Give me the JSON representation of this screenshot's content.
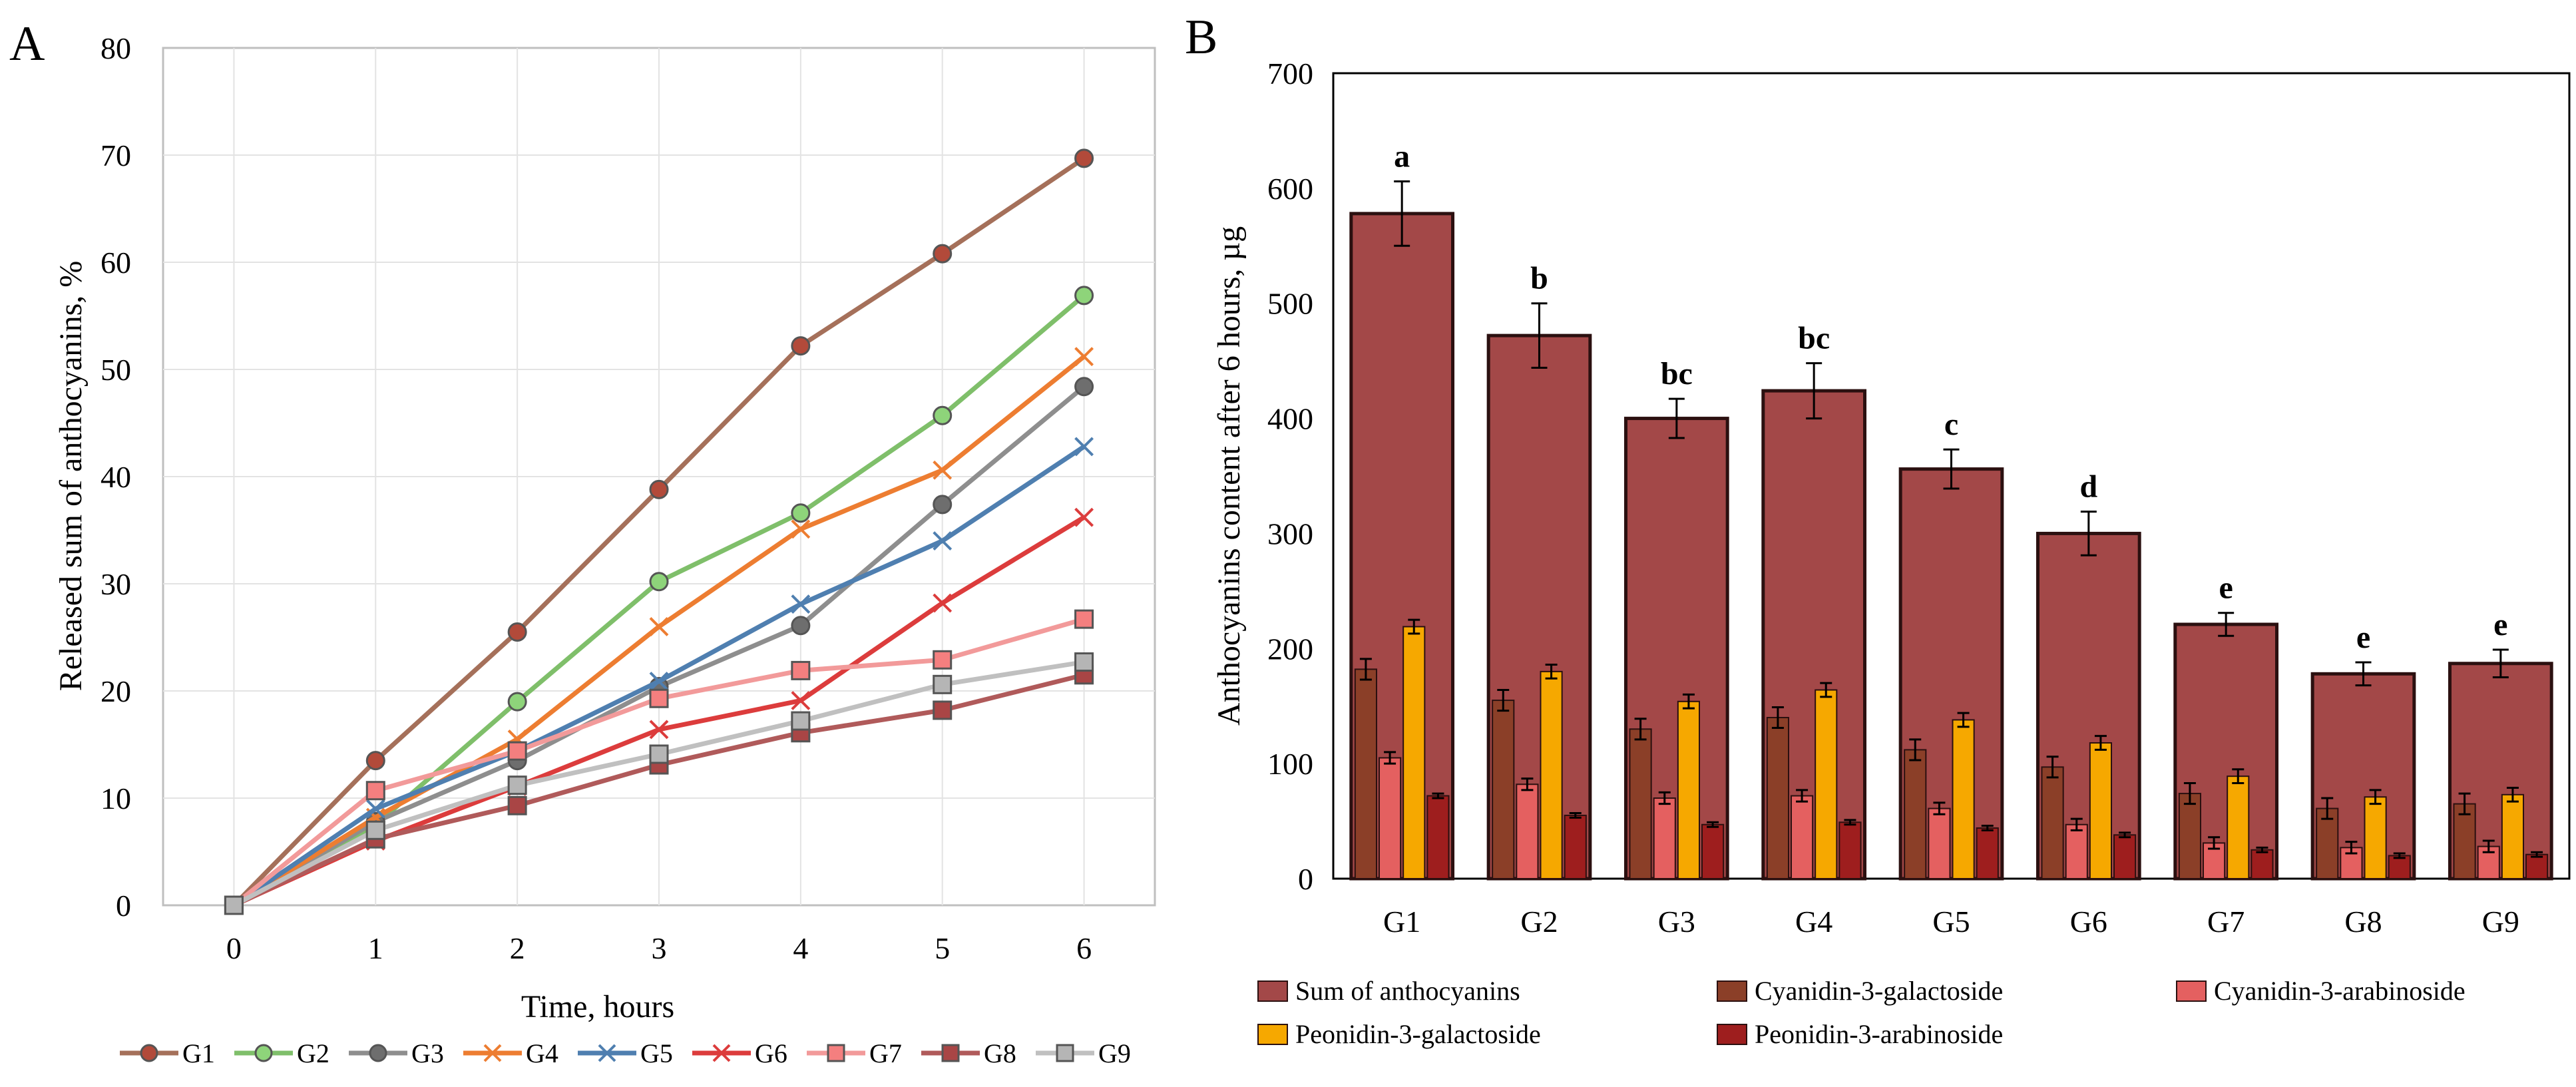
{
  "chart_data": [
    {
      "panel_label": "A",
      "type": "line",
      "xlabel": "Time, hours",
      "ylabel": "Released sum of anthocyanins, %",
      "x": [
        0,
        1,
        2,
        3,
        4,
        5,
        6
      ],
      "xlim": [
        -0.5,
        6.5
      ],
      "ylim": [
        0,
        80
      ],
      "y_ticks": [
        0,
        10,
        20,
        30,
        40,
        50,
        60,
        70,
        80
      ],
      "x_ticks": [
        0,
        1,
        2,
        3,
        4,
        5,
        6
      ],
      "grid": true,
      "legend_position": "bottom",
      "series": [
        {
          "name": "G1",
          "color": "#a5705a",
          "marker": "circle",
          "marker_fill": "#b24a3a",
          "values": [
            0,
            13.5,
            25.5,
            38.8,
            52.2,
            60.8,
            69.7
          ]
        },
        {
          "name": "G2",
          "color": "#7fbf6a",
          "marker": "circle",
          "marker_fill": "#8ed47a",
          "values": [
            0,
            7.5,
            19.0,
            30.2,
            36.6,
            45.7,
            56.9
          ]
        },
        {
          "name": "G3",
          "color": "#8e8e8e",
          "marker": "circle",
          "marker_fill": "#6e6e6e",
          "values": [
            0,
            7.8,
            13.5,
            20.4,
            26.1,
            37.4,
            48.4
          ]
        },
        {
          "name": "G4",
          "color": "#ed7d31",
          "marker": "x",
          "marker_fill": "#ed7d31",
          "values": [
            0,
            8.2,
            15.5,
            26.0,
            35.1,
            40.6,
            51.2
          ]
        },
        {
          "name": "G5",
          "color": "#4f7fb0",
          "marker": "x",
          "marker_fill": "#4f7fb0",
          "values": [
            0,
            9.0,
            14.4,
            20.9,
            28.1,
            34.0,
            42.8
          ]
        },
        {
          "name": "G6",
          "color": "#dc3c3c",
          "marker": "x",
          "marker_fill": "#dc3c3c",
          "values": [
            0,
            6.0,
            11.1,
            16.4,
            19.1,
            28.2,
            36.2
          ]
        },
        {
          "name": "G7",
          "color": "#f29a9a",
          "marker": "square",
          "marker_fill": "#f47f7f",
          "values": [
            0,
            10.7,
            14.4,
            19.3,
            21.9,
            22.9,
            26.7
          ]
        },
        {
          "name": "G8",
          "color": "#b05a5a",
          "marker": "square",
          "marker_fill": "#a94545",
          "values": [
            0,
            6.2,
            9.3,
            13.1,
            16.1,
            18.2,
            21.5
          ]
        },
        {
          "name": "G9",
          "color": "#c0c0c0",
          "marker": "square",
          "marker_fill": "#b5b5b5",
          "values": [
            0,
            7.0,
            11.2,
            14.1,
            17.2,
            20.6,
            22.7
          ]
        }
      ]
    },
    {
      "panel_label": "B",
      "type": "bar",
      "xlabel": "",
      "ylabel": "Anthocyanins content after 6 hours, µg",
      "categories": [
        "G1",
        "G2",
        "G3",
        "G4",
        "G5",
        "G6",
        "G7",
        "G8",
        "G9"
      ],
      "ylim": [
        0,
        700
      ],
      "y_ticks": [
        0,
        100,
        200,
        300,
        400,
        500,
        600,
        700
      ],
      "grid": false,
      "legend_position": "bottom",
      "significance_letters": [
        "a",
        "b",
        "bc",
        "bc",
        "c",
        "d",
        "e",
        "e",
        "e"
      ],
      "total_series": {
        "name": "Sum of anthocyanins",
        "color": "#a34848",
        "values": [
          578,
          472,
          400,
          424,
          356,
          300,
          221,
          178,
          187
        ],
        "errors": [
          28,
          28,
          17,
          24,
          17,
          19,
          10,
          10,
          12
        ]
      },
      "series": [
        {
          "name": "Cyanidin-3-galactoside",
          "color": "#8b3f28",
          "values": [
            182,
            155,
            130,
            140,
            112,
            97,
            74,
            61,
            65
          ],
          "errors": [
            9,
            9,
            5,
            8,
            5,
            6,
            3,
            3,
            3
          ]
        },
        {
          "name": "Cyanidin-3-arabinoside",
          "color": "#e46060",
          "values": [
            105,
            82,
            70,
            72,
            61,
            47,
            31,
            27,
            28
          ],
          "errors": [
            4,
            5,
            3,
            4,
            3,
            3,
            2,
            1,
            1
          ]
        },
        {
          "name": "Peonidin-3-galactoside",
          "color": "#f6a800",
          "values": [
            219,
            180,
            154,
            164,
            138,
            118,
            89,
            71,
            73
          ],
          "errors": [
            11,
            11,
            6,
            10,
            6,
            7,
            4,
            3,
            3
          ]
        },
        {
          "name": "Peonidin-3-arabinoside",
          "color": "#9e1e1e",
          "values": [
            72,
            55,
            47,
            49,
            44,
            38,
            25,
            20,
            21
          ],
          "errors": [
            3,
            3,
            2,
            2,
            2,
            2,
            1,
            1,
            1
          ]
        }
      ]
    }
  ]
}
